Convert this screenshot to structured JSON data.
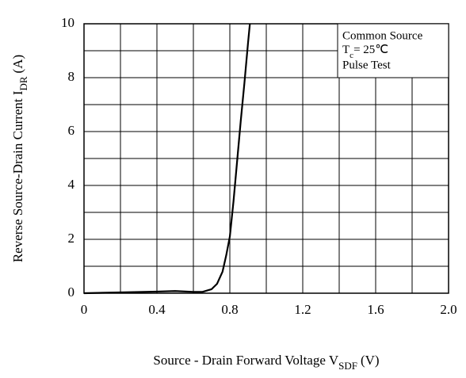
{
  "chart_data": {
    "type": "line",
    "ylabel": {
      "text": "Reverse Source-Drain Current  I",
      "sub": "DR",
      "unit": "(A)"
    },
    "xlabel": {
      "text": "Source - Drain Forward Voltage  V",
      "sub": "SDF",
      "unit": "(V)"
    },
    "note": {
      "line1": "Common Source",
      "t": "T",
      "tsub": "c",
      "tval": "= 25℃",
      "line3": "Pulse Test"
    },
    "xlim": [
      0,
      2
    ],
    "ylim": [
      0,
      10
    ],
    "xticks": [
      0,
      0.4,
      0.8,
      1.2,
      1.6,
      {
        "value": 2,
        "label": "2.0"
      }
    ],
    "xminor": [
      0.2,
      0.6,
      1,
      1.4,
      1.8
    ],
    "yticks": [
      0,
      2,
      4,
      6,
      8,
      10
    ],
    "yminor": [
      1,
      3,
      5,
      7,
      9
    ],
    "grid": true,
    "series": [
      {
        "color": "#000000",
        "x": [
          0,
          0.2,
          0.4,
          0.5,
          0.6,
          0.65,
          0.7,
          0.73,
          0.76,
          0.78,
          0.8,
          0.82,
          0.84,
          0.86,
          0.88,
          0.9,
          0.91
        ],
        "values": [
          0,
          0.03,
          0.06,
          0.08,
          0.05,
          0.05,
          0.15,
          0.35,
          0.8,
          1.4,
          2.1,
          3.4,
          4.9,
          6.4,
          7.8,
          9.3,
          10
        ]
      }
    ]
  }
}
